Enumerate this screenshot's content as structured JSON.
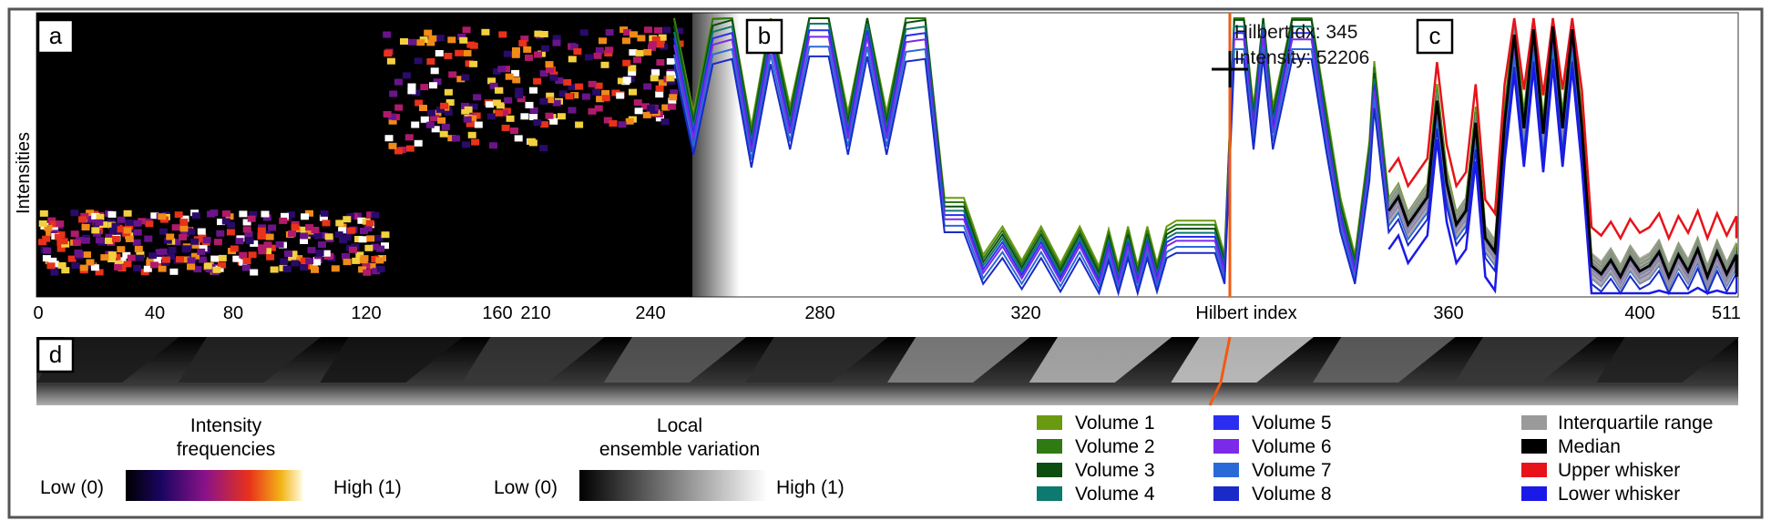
{
  "panels": {
    "a": "a",
    "b": "b",
    "c": "c",
    "d": "d"
  },
  "axis": {
    "ylabel": "Intensities",
    "xlabel": "Hilbert index",
    "ticks_a": [
      "0",
      "40",
      "80",
      "120",
      "160"
    ],
    "ticks_b": [
      "210",
      "240",
      "280",
      "320"
    ],
    "ticks_c": [
      "360",
      "400",
      "511"
    ]
  },
  "tooltip": {
    "line1": "HilbertIdx: 345",
    "line2": "Intensity: 52206"
  },
  "legend_freq": {
    "title1": "Intensity",
    "title2": "frequencies",
    "low": "Low (0)",
    "high": "High (1)"
  },
  "legend_var": {
    "title1": "Local",
    "title2": "ensemble variation",
    "low": "Low (0)",
    "high": "High (1)"
  },
  "legend_volumes": [
    {
      "label": "Volume 1",
      "color": "#6a9a10"
    },
    {
      "label": "Volume 2",
      "color": "#2f7a12"
    },
    {
      "label": "Volume 3",
      "color": "#0c4d10"
    },
    {
      "label": "Volume 4",
      "color": "#0c7a6e"
    },
    {
      "label": "Volume 5",
      "color": "#2a2ef0"
    },
    {
      "label": "Volume 6",
      "color": "#7a2ae8"
    },
    {
      "label": "Volume 7",
      "color": "#2a6ad8"
    },
    {
      "label": "Volume 8",
      "color": "#1a2ac8"
    }
  ],
  "legend_stats": [
    {
      "label": "Interquartile range",
      "color": "#9a9a9a"
    },
    {
      "label": "Median",
      "color": "#000000"
    },
    {
      "label": "Upper whisker",
      "color": "#e8121a"
    },
    {
      "label": "Lower whisker",
      "color": "#1a1ae8"
    }
  ],
  "chart_data": {
    "type": "line",
    "xlabel": "Hilbert index",
    "ylabel": "Intensities",
    "xlim": [
      0,
      511
    ],
    "ylim": [
      0,
      1
    ],
    "marker": {
      "x": 345,
      "intensity": 52206
    },
    "profile": {
      "x": [
        200,
        204,
        208,
        212,
        216,
        220,
        224,
        228,
        232,
        236,
        240,
        244,
        248,
        252,
        256,
        260,
        264,
        268,
        272,
        276,
        280,
        284,
        288,
        290,
        292,
        294,
        296,
        298,
        300,
        302,
        304,
        306,
        308,
        310,
        312,
        314,
        316,
        318,
        320,
        322,
        324,
        328,
        332,
        335,
        338,
        341,
        344,
        345,
        348,
        350,
        352,
        354,
        356,
        358,
        360,
        362,
        364,
        366,
        368,
        370,
        372,
        374,
        376,
        378,
        380,
        382,
        384,
        386,
        388,
        390,
        392,
        394,
        396,
        398,
        400,
        402,
        404,
        406,
        408,
        410,
        412,
        414,
        416,
        418,
        420,
        511
      ],
      "y": [
        0.95,
        0.6,
        0.95,
        0.97,
        0.55,
        0.95,
        0.62,
        0.98,
        0.98,
        0.6,
        0.98,
        0.6,
        0.96,
        0.97,
        0.3,
        0.3,
        0.1,
        0.2,
        0.08,
        0.2,
        0.07,
        0.2,
        0.06,
        0.19,
        0.06,
        0.2,
        0.06,
        0.2,
        0.07,
        0.2,
        0.22,
        0.22,
        0.22,
        0.22,
        0.22,
        0.1,
        0.97,
        0.97,
        0.62,
        0.98,
        0.62,
        0.97,
        0.97,
        0.62,
        0.3,
        0.1,
        0.5,
        0.78,
        0.3,
        0.35,
        0.25,
        0.3,
        0.35,
        0.7,
        0.4,
        0.25,
        0.3,
        0.62,
        0.2,
        0.15,
        0.62,
        0.94,
        0.6,
        0.96,
        0.58,
        0.97,
        0.6,
        0.96,
        0.6,
        0.1,
        0.07,
        0.12,
        0.06,
        0.13,
        0.08,
        0.1,
        0.15,
        0.06,
        0.14,
        0.08,
        0.16,
        0.06,
        0.15,
        0.07,
        0.14,
        0.06
      ]
    },
    "volume_offsets": [
      0.12,
      0.08,
      0.04,
      0.0,
      -0.04,
      -0.08,
      -0.14,
      -0.2
    ],
    "variation_levels": [
      0.08,
      0.12,
      0.05,
      0.2,
      0.35,
      0.15,
      0.55,
      0.75,
      0.85,
      0.4,
      0.2,
      0.1
    ]
  }
}
